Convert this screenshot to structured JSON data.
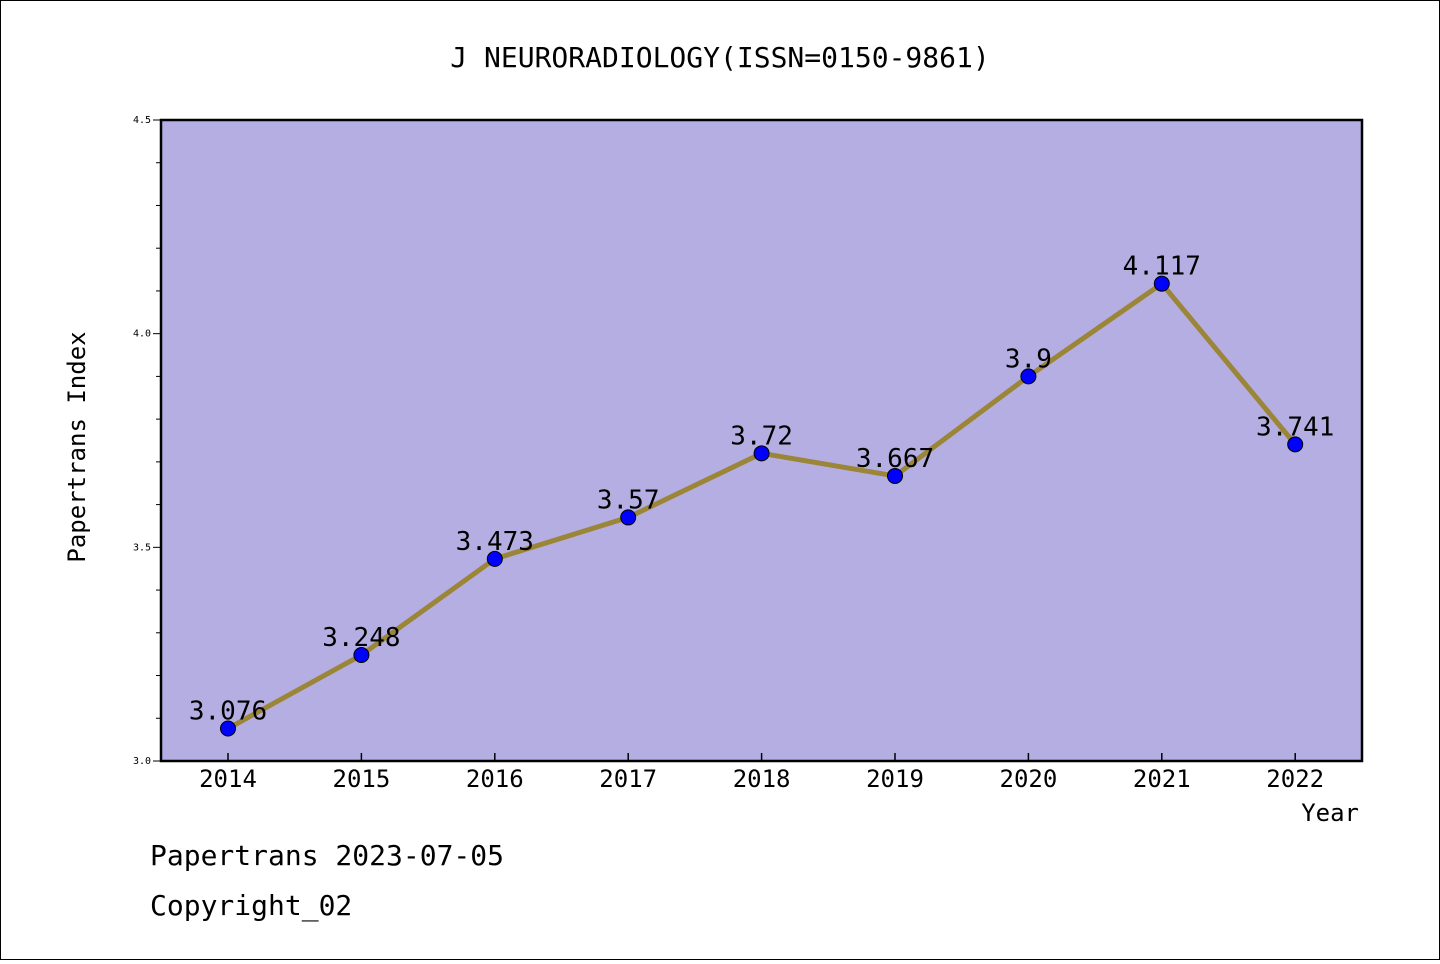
{
  "chart_data": {
    "type": "line",
    "title": "J NEURORADIOLOGY(ISSN=0150-9861)",
    "xlabel": "Year",
    "ylabel": "Papertrans Index",
    "x": [
      "2014",
      "2015",
      "2016",
      "2017",
      "2018",
      "2019",
      "2020",
      "2021",
      "2022"
    ],
    "series": [
      {
        "values": [
          3.076,
          3.248,
          3.473,
          3.57,
          3.72,
          3.667,
          3.9,
          4.117,
          3.741
        ],
        "labels": [
          "3.076",
          "3.248",
          "3.473",
          "3.57",
          "3.72",
          "3.667",
          "3.9",
          "4.117",
          "3.741"
        ]
      }
    ],
    "ylim": [
      3.0,
      4.5
    ],
    "yticks": [
      "3.0",
      "3.5",
      "4.0",
      "4.5"
    ],
    "grid": false,
    "colors": {
      "plot_background": "#b5aee2",
      "line": "#9b8537",
      "marker": "#0000ff"
    }
  },
  "footer": {
    "line1": "Papertrans 2023-07-05",
    "line2": "Copyright_02"
  }
}
